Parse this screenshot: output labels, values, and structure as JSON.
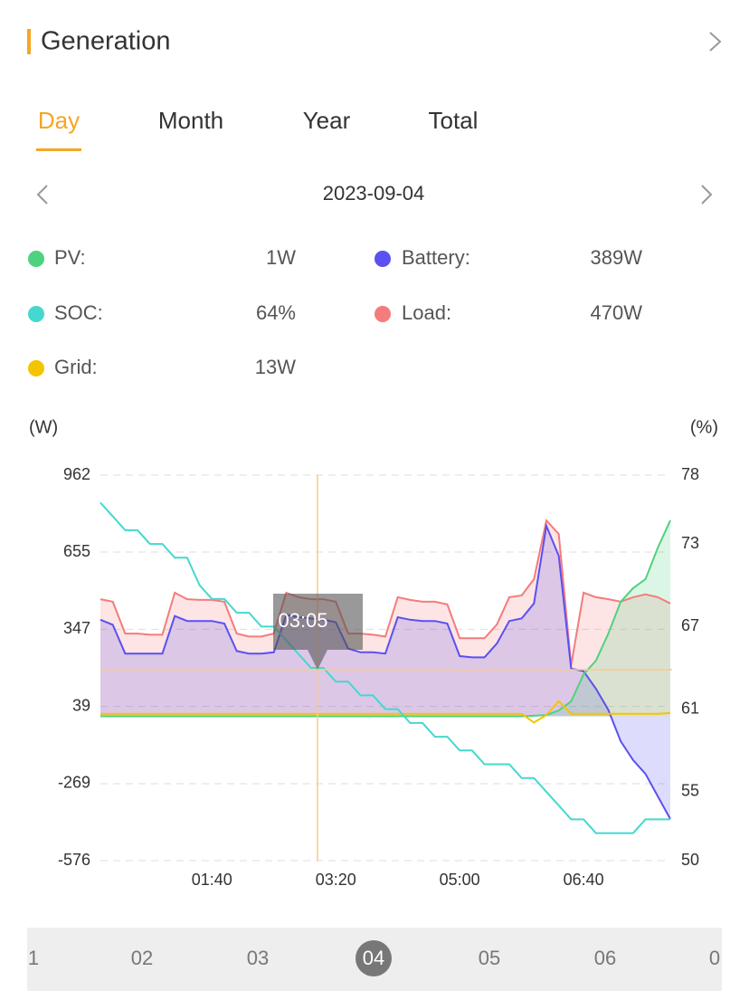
{
  "header": {
    "title": "Generation"
  },
  "tabs": [
    "Day",
    "Month",
    "Year",
    "Total"
  ],
  "date": "2023-09-04",
  "stats": [
    {
      "label": "PV:",
      "value": "1W",
      "color": "#4fd27f"
    },
    {
      "label": "Battery:",
      "value": "389W",
      "color": "#5b50f0"
    },
    {
      "label": "SOC:",
      "value": "64%",
      "color": "#45d8cf"
    },
    {
      "label": "Load:",
      "value": "470W",
      "color": "#f47c7c"
    },
    {
      "label": "Grid:",
      "value": "13W",
      "color": "#f5c400"
    }
  ],
  "chart_data": {
    "type": "line",
    "y_label": "(W)",
    "y2_label": "(%)",
    "tooltip": "03:05",
    "x": [
      "00:10",
      "00:20",
      "00:30",
      "00:40",
      "00:50",
      "01:00",
      "01:10",
      "01:20",
      "01:30",
      "01:40",
      "01:50",
      "02:00",
      "02:10",
      "02:20",
      "02:30",
      "02:40",
      "02:50",
      "03:00",
      "03:10",
      "03:20",
      "03:30",
      "03:40",
      "03:50",
      "04:00",
      "04:10",
      "04:20",
      "04:30",
      "04:40",
      "04:50",
      "05:00",
      "05:10",
      "05:20",
      "05:30",
      "05:40",
      "05:50",
      "06:00",
      "06:10",
      "06:20",
      "06:30",
      "06:40",
      "06:50",
      "07:00",
      "07:10",
      "07:20",
      "07:30",
      "07:40",
      "07:50"
    ],
    "xticks": [
      "01:40",
      "03:20",
      "05:00",
      "06:40"
    ],
    "ylim": [
      -576,
      962
    ],
    "yticks": [
      962,
      655,
      347,
      39,
      -269,
      -576
    ],
    "y2lim": [
      50,
      78
    ],
    "y2ticks": [
      78,
      73,
      67,
      61,
      55,
      50
    ],
    "grid": true,
    "series": [
      {
        "name": "Load",
        "color": "#f47c7c",
        "fill": true,
        "values": [
          467,
          457,
          330,
          330,
          325,
          325,
          493,
          467,
          464,
          464,
          457,
          330,
          318,
          318,
          330,
          493,
          475,
          467,
          467,
          457,
          330,
          330,
          325,
          318,
          475,
          464,
          457,
          457,
          446,
          311,
          311,
          311,
          366,
          475,
          482,
          547,
          781,
          727,
          204,
          493,
          475,
          467,
          457,
          475,
          486,
          475,
          450
        ]
      },
      {
        "name": "Battery",
        "color": "#5b50f0",
        "fill": true,
        "values": [
          385,
          365,
          250,
          250,
          250,
          250,
          400,
          380,
          380,
          380,
          370,
          260,
          250,
          250,
          255,
          405,
          395,
          390,
          385,
          375,
          270,
          255,
          255,
          250,
          395,
          385,
          380,
          380,
          370,
          240,
          235,
          235,
          290,
          380,
          390,
          450,
          760,
          640,
          190,
          180,
          110,
          25,
          -100,
          -175,
          -230,
          -320,
          -410
        ]
      },
      {
        "name": "PV",
        "color": "#4fd27f",
        "fill": true,
        "values": [
          0,
          0,
          0,
          0,
          0,
          0,
          0,
          0,
          0,
          0,
          0,
          0,
          0,
          0,
          0,
          0,
          0,
          0,
          0,
          0,
          0,
          0,
          0,
          0,
          0,
          0,
          0,
          0,
          0,
          0,
          0,
          0,
          0,
          0,
          0,
          2,
          5,
          23,
          59,
          167,
          222,
          330,
          457,
          511,
          547,
          673,
          781
        ]
      },
      {
        "name": "Grid",
        "color": "#f5c400",
        "fill": false,
        "values": [
          10,
          10,
          10,
          10,
          10,
          10,
          10,
          10,
          10,
          10,
          10,
          10,
          10,
          10,
          10,
          10,
          10,
          10,
          10,
          10,
          10,
          10,
          10,
          10,
          10,
          10,
          10,
          10,
          10,
          10,
          10,
          10,
          10,
          10,
          10,
          -25,
          5,
          60,
          10,
          10,
          10,
          10,
          10,
          10,
          10,
          10,
          13
        ]
      },
      {
        "name": "SOC",
        "color": "#45d8cf",
        "fill": false,
        "axis": "y2",
        "values": [
          76,
          75,
          74,
          74,
          73,
          73,
          72,
          72,
          70,
          69,
          69,
          68,
          68,
          67,
          67,
          66,
          65,
          64,
          64,
          63,
          63,
          62,
          62,
          61,
          61,
          60,
          60,
          59,
          59,
          58,
          58,
          57,
          57,
          57,
          56,
          56,
          55,
          54,
          53,
          53,
          52,
          52,
          52,
          52,
          53,
          53,
          53
        ]
      }
    ]
  },
  "day_strip": {
    "days": [
      "1",
      "02",
      "03",
      "04",
      "05",
      "06",
      "0"
    ],
    "selected": "04"
  }
}
